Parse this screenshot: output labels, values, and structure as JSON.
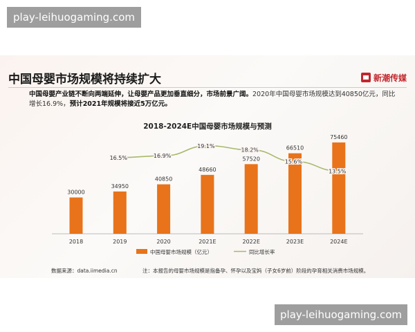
{
  "watermark": "play-leihuogaming.com",
  "page": {
    "title": "中国母婴市场规模将持续扩大",
    "brand": "新潮传媒",
    "summary_bold_1": "中国母婴产业链不断向两端延伸，让母婴产品更加垂直细分，市场前景广阔。",
    "summary_plain": "2020年中国母婴市场规模达到40850亿元，同比增长16.9%，",
    "summary_bold_2": "预计2021年规模将接近5万亿元。"
  },
  "chart_data": {
    "type": "bar",
    "title": "2018-2024E中国母婴市场规模与预测",
    "categories": [
      "2018",
      "2019",
      "2020",
      "2021E",
      "2022E",
      "2023E",
      "2024E"
    ],
    "series": [
      {
        "name": "中国母婴市场规模（亿元）",
        "type": "bar",
        "color": "#e8731a",
        "values": [
          30000,
          34950,
          40850,
          48660,
          57520,
          66510,
          75460
        ],
        "labels": [
          "30000",
          "34950",
          "40850",
          "48660",
          "57520",
          "66510",
          "75460"
        ]
      },
      {
        "name": "同比增长率",
        "type": "line",
        "color": "#a8b86a",
        "values": [
          null,
          16.5,
          16.9,
          19.1,
          18.2,
          15.6,
          13.5
        ],
        "labels": [
          "",
          "16.5%",
          "16.9%",
          "19.1%",
          "18.2%",
          "15.6%",
          "13.5%"
        ]
      }
    ],
    "legend_position": "bottom",
    "grid": false
  },
  "footer": {
    "source": "数据来源：data.iimedia.cn",
    "note": "注：本报告的母婴市场规模是指备孕、怀孕以及宝妈（子女6岁前）阶段的孕育相关消费市场规模。"
  }
}
